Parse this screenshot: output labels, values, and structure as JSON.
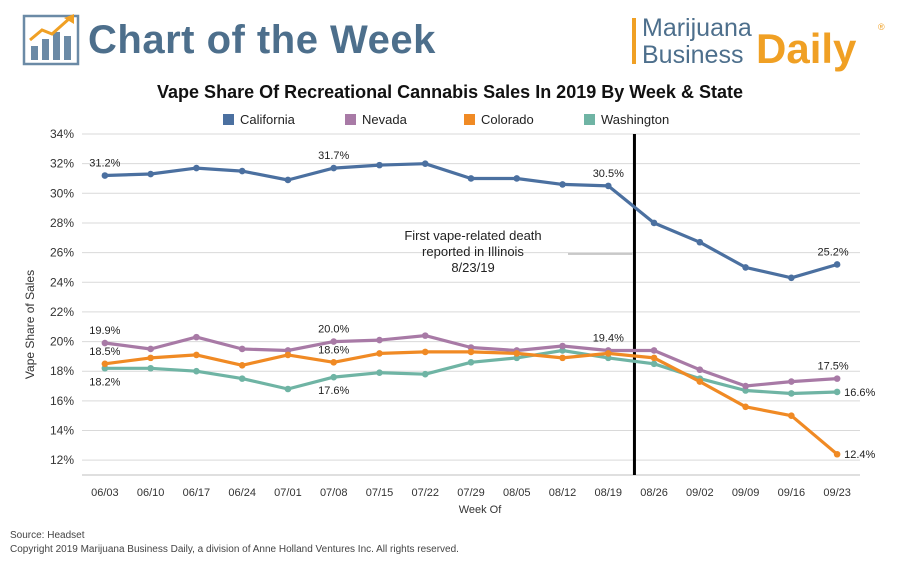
{
  "header": {
    "feature_title": "Chart of the Week",
    "brand_line1": "Marijuana",
    "brand_line2": "Business",
    "brand_daily": "Daily",
    "brand_mark": "®"
  },
  "colors": {
    "california": "#4b70a0",
    "nevada": "#a87aa6",
    "colorado": "#f08a24",
    "washington": "#6fb4a4",
    "brand_blue": "#4d6f8c",
    "brand_orange": "#f0a024"
  },
  "chart_data": {
    "type": "line",
    "title": "Vape Share Of Recreational Cannabis Sales In 2019 By Week & State",
    "xlabel": "Week Of",
    "ylabel": "Vape Share of Sales",
    "y_unit": "%",
    "ylim": [
      11,
      34
    ],
    "y_ticks": [
      12,
      14,
      16,
      18,
      20,
      22,
      24,
      26,
      28,
      30,
      32,
      34
    ],
    "grid": "horizontal",
    "legend_position": "top",
    "categories": [
      "06/03",
      "06/10",
      "06/17",
      "06/24",
      "07/01",
      "07/08",
      "07/15",
      "07/22",
      "07/29",
      "08/05",
      "08/12",
      "08/19",
      "08/26",
      "09/02",
      "09/09",
      "09/16",
      "09/23"
    ],
    "series": [
      {
        "name": "California",
        "color_key": "california",
        "values": [
          31.2,
          31.3,
          31.7,
          31.5,
          30.9,
          31.7,
          31.9,
          32.0,
          31.0,
          31.0,
          30.6,
          30.5,
          28.0,
          26.7,
          25.0,
          24.3,
          25.2
        ]
      },
      {
        "name": "Nevada",
        "color_key": "nevada",
        "values": [
          19.9,
          19.5,
          20.3,
          19.5,
          19.4,
          20.0,
          20.1,
          20.4,
          19.6,
          19.4,
          19.7,
          19.4,
          19.4,
          18.1,
          17.0,
          17.3,
          17.5
        ]
      },
      {
        "name": "Colorado",
        "color_key": "colorado",
        "values": [
          18.5,
          18.9,
          19.1,
          18.4,
          19.1,
          18.6,
          19.2,
          19.3,
          19.3,
          19.2,
          18.9,
          19.2,
          18.9,
          17.3,
          15.6,
          15.0,
          12.4
        ]
      },
      {
        "name": "Washington",
        "color_key": "washington",
        "values": [
          18.2,
          18.2,
          18.0,
          17.5,
          16.8,
          17.6,
          17.9,
          17.8,
          18.6,
          18.9,
          19.4,
          18.9,
          18.5,
          17.5,
          16.7,
          16.5,
          16.6
        ]
      }
    ],
    "data_labels": [
      {
        "series": 0,
        "index": 0,
        "text": "31.2%",
        "place": "above"
      },
      {
        "series": 0,
        "index": 5,
        "text": "31.7%",
        "place": "above"
      },
      {
        "series": 0,
        "index": 11,
        "text": "30.5%",
        "place": "above"
      },
      {
        "series": 0,
        "index": 16,
        "text": "25.2%",
        "place": "above"
      },
      {
        "series": 1,
        "index": 0,
        "text": "19.9%",
        "place": "above"
      },
      {
        "series": 1,
        "index": 5,
        "text": "20.0%",
        "place": "above"
      },
      {
        "series": 1,
        "index": 11,
        "text": "19.4%",
        "place": "above"
      },
      {
        "series": 1,
        "index": 16,
        "text": "17.5%",
        "place": "above"
      },
      {
        "series": 2,
        "index": 0,
        "text": "18.5%",
        "place": "above"
      },
      {
        "series": 2,
        "index": 5,
        "text": "18.6%",
        "place": "above"
      },
      {
        "series": 2,
        "index": 16,
        "text": "12.4%",
        "place": "right"
      },
      {
        "series": 3,
        "index": 0,
        "text": "18.2%",
        "place": "below"
      },
      {
        "series": 3,
        "index": 5,
        "text": "17.6%",
        "place": "below"
      },
      {
        "series": 3,
        "index": 16,
        "text": "16.6%",
        "place": "right"
      }
    ],
    "event_marker": {
      "date": "8/23/19",
      "text_lines": [
        "First vape-related death",
        "reported in Illinois",
        "8/23/19"
      ]
    }
  },
  "footer": {
    "source": "Source: Headset",
    "copyright": "Copyright 2019 Marijuana Business Daily, a division of Anne Holland Ventures Inc. All rights reserved."
  }
}
